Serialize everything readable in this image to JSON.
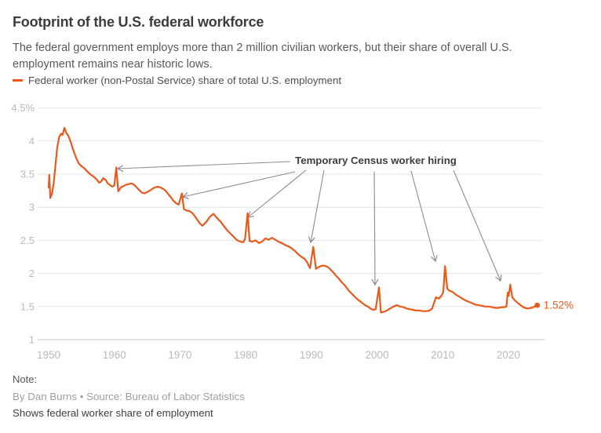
{
  "header": {
    "title": "Footprint of the U.S. federal workforce",
    "subtitle": "The federal government employs more than 2 million civilian workers, but their share of overall U.S. employment remains near historic lows."
  },
  "legend": {
    "label": "Federal worker (non-Postal Service) share of total U.S. employment"
  },
  "colors": {
    "line": "#E8591C",
    "axis_text": "#b9b9b9",
    "grid": "#e4e4e4",
    "baseline": "#c9c9c9",
    "arrow": "#8c8c8c",
    "annotation_text": "#3d3d3d"
  },
  "chart_data": {
    "type": "line",
    "title": "Footprint of the U.S. federal workforce",
    "xlabel": "",
    "ylabel": "",
    "grid": "horizontal",
    "legend_position": "top-left",
    "xlim": [
      1948.3,
      2025.5
    ],
    "ylim": [
      1,
      4.5
    ],
    "x_ticks": [
      1950,
      1960,
      1970,
      1980,
      1990,
      2000,
      2010,
      2020
    ],
    "y_ticks": [
      {
        "value": 4.5,
        "label": "4.5%"
      },
      {
        "value": 4,
        "label": "4"
      },
      {
        "value": 3.5,
        "label": "3.5"
      },
      {
        "value": 3,
        "label": "3"
      },
      {
        "value": 2.5,
        "label": "2.5"
      },
      {
        "value": 2,
        "label": "2"
      },
      {
        "value": 1.5,
        "label": "1.5"
      },
      {
        "value": 1,
        "label": "1"
      }
    ],
    "annotation": {
      "label": "Temporary Census worker hiring",
      "target_years": [
        1960,
        1970,
        1980,
        1990,
        2000,
        2010,
        2020
      ]
    },
    "end_label": "1.52%",
    "end_value": 1.52,
    "series": [
      {
        "name": "Federal worker (non-Postal Service) share of total U.S. employment",
        "points": [
          [
            1950.0,
            3.3
          ],
          [
            1950.1,
            3.49
          ],
          [
            1950.25,
            3.14
          ],
          [
            1950.5,
            3.2
          ],
          [
            1950.75,
            3.35
          ],
          [
            1951.0,
            3.6
          ],
          [
            1951.3,
            3.9
          ],
          [
            1951.6,
            4.06
          ],
          [
            1951.9,
            4.11
          ],
          [
            1952.1,
            4.09
          ],
          [
            1952.4,
            4.2
          ],
          [
            1952.7,
            4.12
          ],
          [
            1953.0,
            4.08
          ],
          [
            1953.4,
            3.97
          ],
          [
            1953.8,
            3.85
          ],
          [
            1954.2,
            3.74
          ],
          [
            1954.6,
            3.66
          ],
          [
            1955.0,
            3.62
          ],
          [
            1955.4,
            3.59
          ],
          [
            1955.8,
            3.55
          ],
          [
            1956.2,
            3.51
          ],
          [
            1956.6,
            3.48
          ],
          [
            1957.0,
            3.45
          ],
          [
            1957.4,
            3.41
          ],
          [
            1957.7,
            3.37
          ],
          [
            1958.0,
            3.39
          ],
          [
            1958.3,
            3.44
          ],
          [
            1958.7,
            3.41
          ],
          [
            1959.0,
            3.36
          ],
          [
            1959.4,
            3.33
          ],
          [
            1959.7,
            3.31
          ],
          [
            1960.0,
            3.33
          ],
          [
            1960.3,
            3.6
          ],
          [
            1960.6,
            3.24
          ],
          [
            1961.0,
            3.3
          ],
          [
            1961.4,
            3.32
          ],
          [
            1961.8,
            3.34
          ],
          [
            1962.2,
            3.35
          ],
          [
            1962.6,
            3.36
          ],
          [
            1963.0,
            3.34
          ],
          [
            1963.4,
            3.3
          ],
          [
            1963.8,
            3.26
          ],
          [
            1964.2,
            3.22
          ],
          [
            1964.6,
            3.21
          ],
          [
            1965.0,
            3.23
          ],
          [
            1965.4,
            3.25
          ],
          [
            1965.8,
            3.28
          ],
          [
            1966.2,
            3.3
          ],
          [
            1966.6,
            3.31
          ],
          [
            1967.0,
            3.3
          ],
          [
            1967.4,
            3.28
          ],
          [
            1967.8,
            3.25
          ],
          [
            1968.2,
            3.2
          ],
          [
            1968.6,
            3.15
          ],
          [
            1969.0,
            3.1
          ],
          [
            1969.4,
            3.06
          ],
          [
            1969.8,
            3.04
          ],
          [
            1970.3,
            3.21
          ],
          [
            1970.6,
            2.97
          ],
          [
            1971.0,
            2.95
          ],
          [
            1971.5,
            2.94
          ],
          [
            1972.0,
            2.9
          ],
          [
            1972.5,
            2.83
          ],
          [
            1973.0,
            2.76
          ],
          [
            1973.4,
            2.72
          ],
          [
            1974.0,
            2.78
          ],
          [
            1974.6,
            2.86
          ],
          [
            1975.1,
            2.9
          ],
          [
            1975.6,
            2.84
          ],
          [
            1976.2,
            2.78
          ],
          [
            1976.8,
            2.7
          ],
          [
            1977.4,
            2.63
          ],
          [
            1978.0,
            2.57
          ],
          [
            1978.6,
            2.51
          ],
          [
            1979.2,
            2.48
          ],
          [
            1979.6,
            2.47
          ],
          [
            1979.9,
            2.52
          ],
          [
            1980.3,
            2.91
          ],
          [
            1980.6,
            2.49
          ],
          [
            1981.0,
            2.48
          ],
          [
            1981.5,
            2.5
          ],
          [
            1982.0,
            2.46
          ],
          [
            1982.5,
            2.48
          ],
          [
            1983.0,
            2.53
          ],
          [
            1983.5,
            2.51
          ],
          [
            1984.0,
            2.54
          ],
          [
            1984.5,
            2.51
          ],
          [
            1985.0,
            2.48
          ],
          [
            1985.5,
            2.46
          ],
          [
            1986.0,
            2.43
          ],
          [
            1986.5,
            2.41
          ],
          [
            1987.0,
            2.38
          ],
          [
            1987.5,
            2.34
          ],
          [
            1988.0,
            2.29
          ],
          [
            1988.5,
            2.25
          ],
          [
            1989.0,
            2.22
          ],
          [
            1989.4,
            2.16
          ],
          [
            1989.8,
            2.08
          ],
          [
            1990.3,
            2.4
          ],
          [
            1990.7,
            2.07
          ],
          [
            1991.0,
            2.09
          ],
          [
            1991.4,
            2.11
          ],
          [
            1991.8,
            2.12
          ],
          [
            1992.2,
            2.11
          ],
          [
            1992.6,
            2.09
          ],
          [
            1993.0,
            2.05
          ],
          [
            1993.4,
            2.01
          ],
          [
            1993.8,
            1.96
          ],
          [
            1994.2,
            1.92
          ],
          [
            1994.6,
            1.87
          ],
          [
            1995.0,
            1.83
          ],
          [
            1995.4,
            1.78
          ],
          [
            1995.8,
            1.73
          ],
          [
            1996.2,
            1.69
          ],
          [
            1996.6,
            1.65
          ],
          [
            1997.0,
            1.61
          ],
          [
            1997.4,
            1.58
          ],
          [
            1997.8,
            1.55
          ],
          [
            1998.2,
            1.52
          ],
          [
            1998.6,
            1.5
          ],
          [
            1999.0,
            1.47
          ],
          [
            1999.4,
            1.45
          ],
          [
            1999.8,
            1.46
          ],
          [
            2000.3,
            1.79
          ],
          [
            2000.6,
            1.41
          ],
          [
            2001.0,
            1.42
          ],
          [
            2001.5,
            1.44
          ],
          [
            2002.0,
            1.47
          ],
          [
            2002.5,
            1.5
          ],
          [
            2003.0,
            1.52
          ],
          [
            2003.5,
            1.5
          ],
          [
            2004.0,
            1.49
          ],
          [
            2004.5,
            1.47
          ],
          [
            2005.0,
            1.46
          ],
          [
            2005.5,
            1.45
          ],
          [
            2006.0,
            1.44
          ],
          [
            2006.5,
            1.44
          ],
          [
            2007.0,
            1.43
          ],
          [
            2007.5,
            1.43
          ],
          [
            2008.0,
            1.44
          ],
          [
            2008.4,
            1.47
          ],
          [
            2008.7,
            1.56
          ],
          [
            2009.0,
            1.64
          ],
          [
            2009.4,
            1.62
          ],
          [
            2009.8,
            1.66
          ],
          [
            2010.1,
            1.72
          ],
          [
            2010.35,
            2.11
          ],
          [
            2010.7,
            1.77
          ],
          [
            2011.0,
            1.74
          ],
          [
            2011.5,
            1.72
          ],
          [
            2012.0,
            1.68
          ],
          [
            2012.5,
            1.65
          ],
          [
            2013.0,
            1.62
          ],
          [
            2013.5,
            1.59
          ],
          [
            2014.0,
            1.57
          ],
          [
            2014.5,
            1.55
          ],
          [
            2015.0,
            1.53
          ],
          [
            2015.5,
            1.52
          ],
          [
            2016.0,
            1.51
          ],
          [
            2016.5,
            1.5
          ],
          [
            2017.0,
            1.5
          ],
          [
            2017.5,
            1.49
          ],
          [
            2018.0,
            1.48
          ],
          [
            2018.5,
            1.48
          ],
          [
            2019.0,
            1.49
          ],
          [
            2019.4,
            1.49
          ],
          [
            2019.7,
            1.5
          ],
          [
            2019.9,
            1.71
          ],
          [
            2020.05,
            1.66
          ],
          [
            2020.3,
            1.83
          ],
          [
            2020.6,
            1.64
          ],
          [
            2021.0,
            1.59
          ],
          [
            2021.5,
            1.55
          ],
          [
            2022.0,
            1.51
          ],
          [
            2022.5,
            1.48
          ],
          [
            2023.0,
            1.47
          ],
          [
            2023.5,
            1.48
          ],
          [
            2024.0,
            1.5
          ],
          [
            2024.4,
            1.52
          ]
        ]
      }
    ]
  },
  "footer": {
    "note_label": "Note:",
    "byline": "By Dan Burns • Source: Bureau of Labor Statistics",
    "description": "Shows federal worker share of employment"
  }
}
